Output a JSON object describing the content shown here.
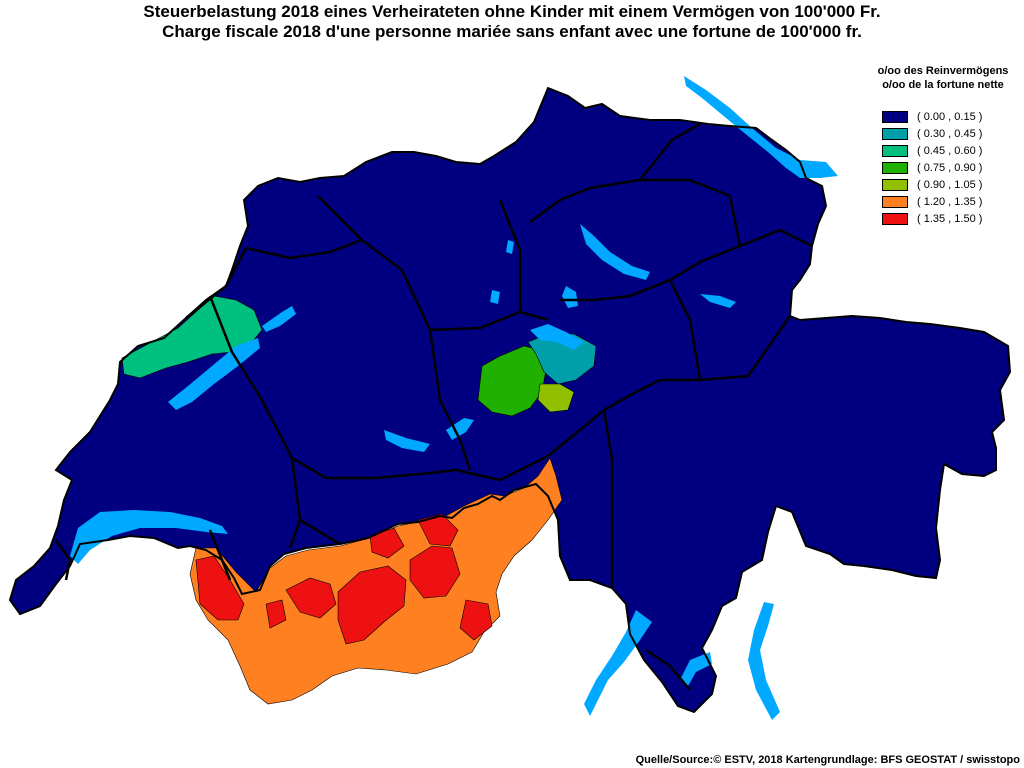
{
  "title": {
    "de": "Steuerbelastung 2018 eines Verheirateten ohne Kinder mit einem Vermögen von 100'000 Fr.",
    "fr": "Charge fiscale 2018 d'une personne mariée sans enfant avec une fortune de 100'000 fr."
  },
  "legend": {
    "heading_de": "o/oo des Reinvermögens",
    "heading_fr": "o/oo de la fortune nette",
    "classes": [
      {
        "label": "( 0.00 , 0.15 )",
        "color": "#000080"
      },
      {
        "label": "( 0.30 , 0.45 )",
        "color": "#009faa"
      },
      {
        "label": "( 0.45 , 0.60 )",
        "color": "#00c080"
      },
      {
        "label": "( 0.75 , 0.90 )",
        "color": "#20b000"
      },
      {
        "label": "( 0.90 , 1.05 )",
        "color": "#90c000"
      },
      {
        "label": "( 1.20 , 1.35 )",
        "color": "#ff8020"
      },
      {
        "label": "( 1.35 , 1.50 )",
        "color": "#ee1111"
      }
    ]
  },
  "map": {
    "country": "Switzerland",
    "colors": {
      "lake": "#00a8ff",
      "border": "#000000",
      "base": "#000080"
    }
  },
  "source": "Quelle/Source:© ESTV, 2018 Kartengrundlage: BFS GEOSTAT / swisstopo"
}
